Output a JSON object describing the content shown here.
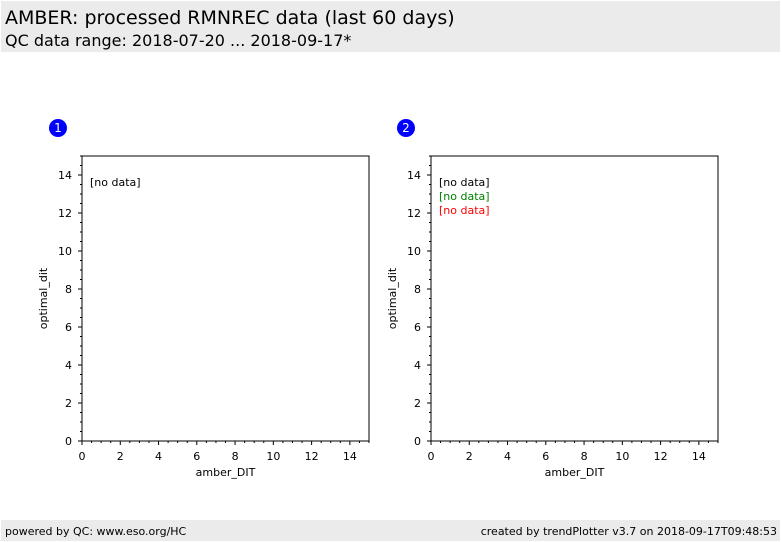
{
  "header": {
    "title": "AMBER: processed RMNREC data (last 60 days)",
    "subtitle": "QC data range: 2018-07-20 ... 2018-09-17*"
  },
  "footer": {
    "left": "powered by QC: www.eso.org/HC",
    "right": "created by trendPlotter v3.7 on 2018-09-17T09:48:53"
  },
  "colors": {
    "badge": "#0000ff",
    "header_bg": "#ebebeb",
    "series_black": "#000000",
    "series_green": "#008000",
    "series_red": "#ff0000"
  },
  "chart_data": [
    {
      "type": "scatter",
      "badge": "1",
      "xlabel": "amber_DIT",
      "ylabel": "optimal_dit",
      "xlim": [
        0,
        15
      ],
      "ylim": [
        0,
        15
      ],
      "xticks": [
        0,
        2,
        4,
        6,
        8,
        10,
        12,
        14
      ],
      "yticks": [
        0,
        2,
        4,
        6,
        8,
        10,
        12,
        14
      ],
      "minor_step": 0.5,
      "grid": false,
      "annotations": [
        {
          "text": "[no data]",
          "color": "#000000"
        }
      ],
      "series": []
    },
    {
      "type": "scatter",
      "badge": "2",
      "xlabel": "amber_DIT",
      "ylabel": "optimal_dit",
      "xlim": [
        0,
        15
      ],
      "ylim": [
        0,
        15
      ],
      "xticks": [
        0,
        2,
        4,
        6,
        8,
        10,
        12,
        14
      ],
      "yticks": [
        0,
        2,
        4,
        6,
        8,
        10,
        12,
        14
      ],
      "minor_step": 0.5,
      "grid": false,
      "annotations": [
        {
          "text": "[no data]",
          "color": "#000000"
        },
        {
          "text": "[no data]",
          "color": "#008000"
        },
        {
          "text": "[no data]",
          "color": "#ff0000"
        }
      ],
      "series": []
    }
  ]
}
